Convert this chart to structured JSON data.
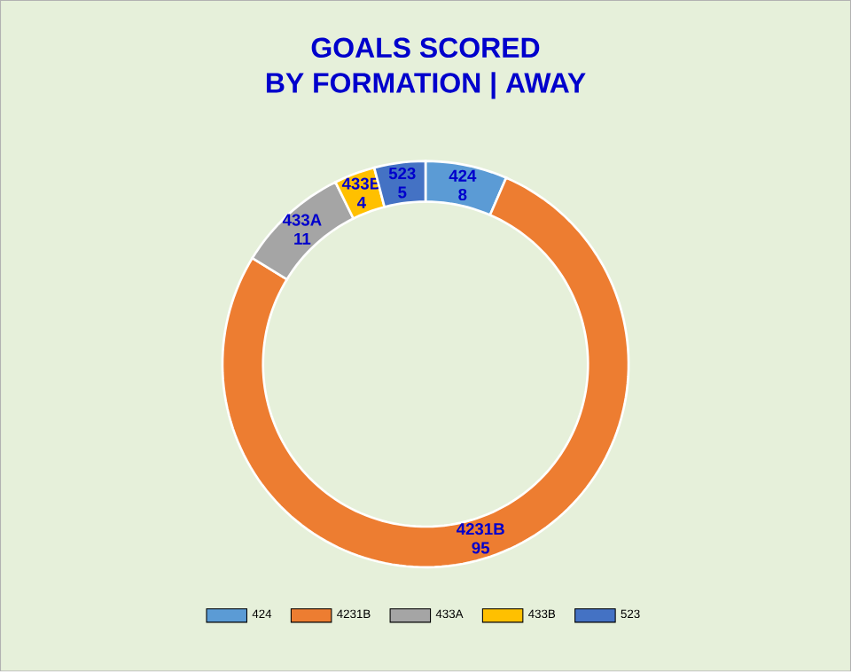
{
  "chart_data": {
    "type": "donut",
    "title": "GOALS SCORED",
    "subtitle": "BY FORMATION  |  AWAY",
    "categories": [
      "424",
      "4231B",
      "433A",
      "433B",
      "523"
    ],
    "values": [
      8,
      95,
      11,
      4,
      5
    ],
    "colors": [
      "#5b9bd5",
      "#ed7d31",
      "#a5a5a5",
      "#ffc000",
      "#4472c4"
    ],
    "data_labels": true,
    "legend": "bottom"
  }
}
